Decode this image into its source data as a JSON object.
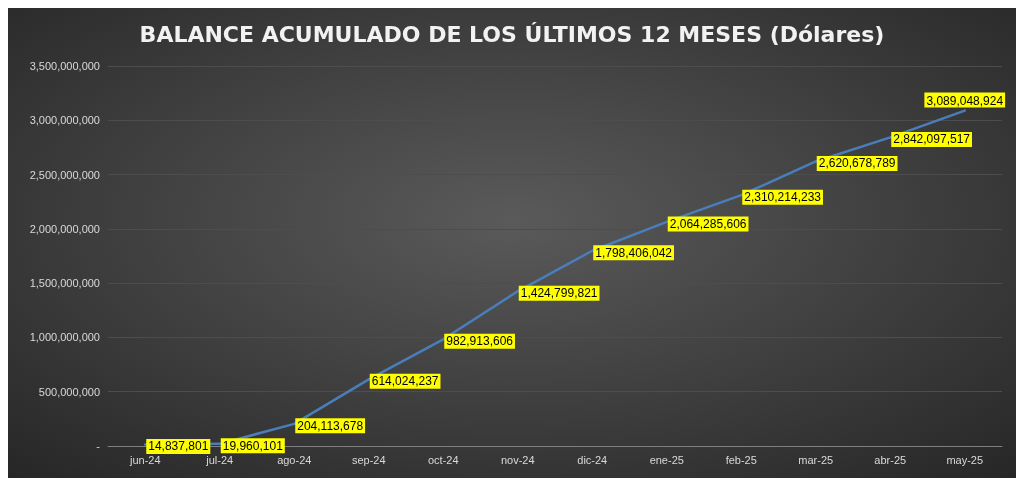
{
  "chart_data": {
    "type": "line",
    "title": "BALANCE ACUMULADO DE LOS ÚLTIMOS 12 MESES (Dólares)",
    "categories": [
      "jun-24",
      "jul-24",
      "ago-24",
      "sep-24",
      "oct-24",
      "nov-24",
      "dic-24",
      "ene-25",
      "feb-25",
      "mar-25",
      "abr-25",
      "may-25"
    ],
    "series": [
      {
        "color": "#4a7ebb",
        "values": [
          14837801,
          19960101,
          204113678,
          614024237,
          982913606,
          1424799821,
          1798406042,
          2064285606,
          2310214233,
          2620678789,
          2842097517,
          3089048924
        ],
        "value_labels": [
          "14,837,801",
          "19,960,101",
          "204,113,678",
          "614,024,237",
          "982,913,606",
          "1,424,799,821",
          "1,798,406,042",
          "2,064,285,606",
          "2,310,214,233",
          "2,620,678,789",
          "2,842,097,517",
          "3,089,048,924"
        ]
      }
    ],
    "ylim": [
      0,
      3500000000
    ],
    "yticks": [
      {
        "value": 0,
        "label": "-"
      },
      {
        "value": 500000000,
        "label": "500,000,000"
      },
      {
        "value": 1000000000,
        "label": "1,000,000,000"
      },
      {
        "value": 1500000000,
        "label": "1,500,000,000"
      },
      {
        "value": 2000000000,
        "label": "2,000,000,000"
      },
      {
        "value": 2500000000,
        "label": "2,500,000,000"
      },
      {
        "value": 3000000000,
        "label": "3,000,000,000"
      },
      {
        "value": 3500000000,
        "label": "3,500,000,000"
      }
    ],
    "grid": "y",
    "marker": "none",
    "line_style": "solid"
  }
}
